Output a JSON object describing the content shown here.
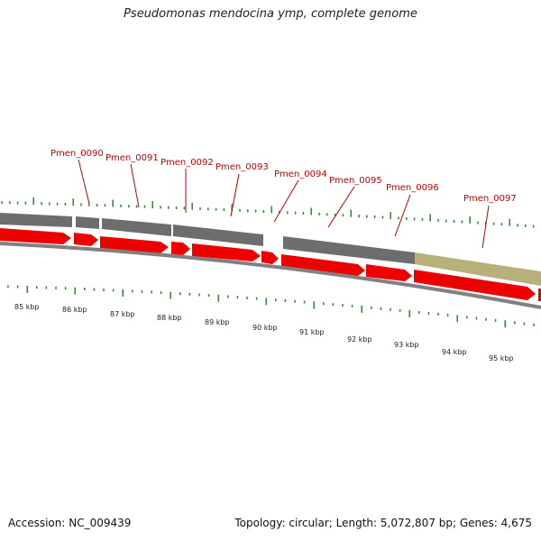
{
  "title": "Pseudomonas mendocina ymp, complete genome",
  "footer": {
    "accession": "Accession: NC_009439",
    "summary": "Topology: circular; Length: 5,072,807 bp; Genes: 4,675"
  },
  "colors": {
    "gene_label": "#c00000",
    "cds_arrow": "#ee0000",
    "gene_bar": "#6d6d6d",
    "highlight_bar": "#b8b07a",
    "tick": "#2a8a2a",
    "backbone": "#808080"
  },
  "gene_labels": [
    "Pmen_0090",
    "Pmen_0091",
    "Pmen_0092",
    "Pmen_0093",
    "Pmen_0094",
    "Pmen_0095",
    "Pmen_0096",
    "Pmen_0097"
  ],
  "kbp_labels": [
    "85 kbp",
    "86 kbp",
    "87 kbp",
    "88 kbp",
    "89 kbp",
    "90 kbp",
    "91 kbp",
    "92 kbp",
    "93 kbp",
    "94 kbp",
    "95 kbp"
  ]
}
